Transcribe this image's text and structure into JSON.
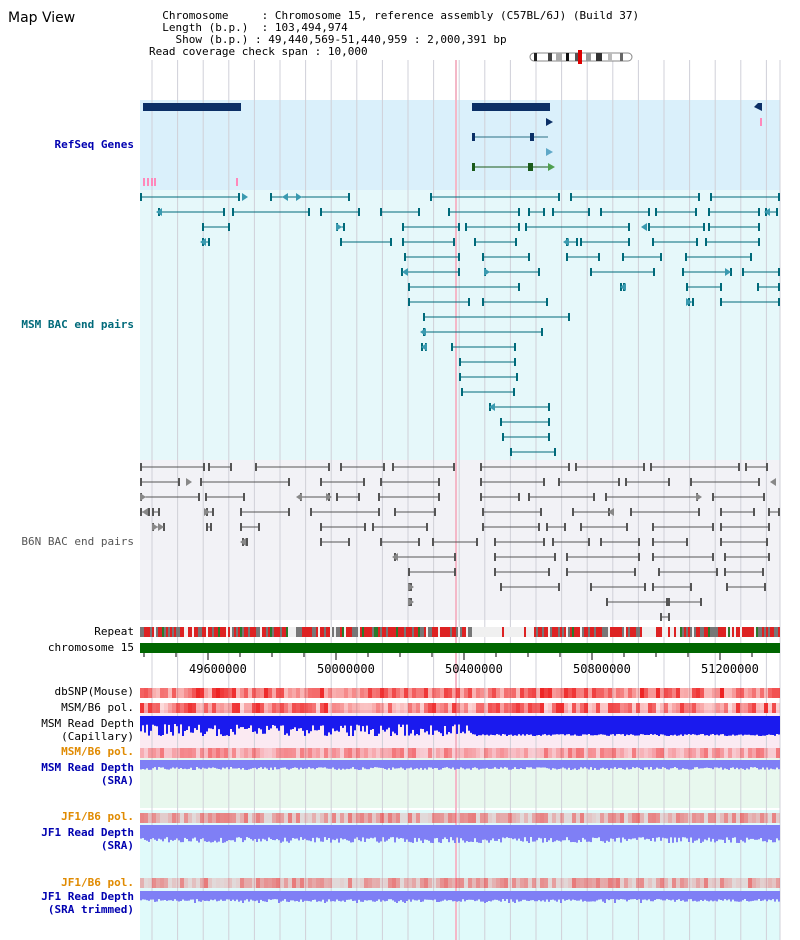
{
  "page_title": "Map View",
  "header": {
    "chromosome_key": "Chromosome",
    "chromosome_value": "Chromosome 15, reference assembly (C57BL/6J) (Build 37)",
    "length_key": "Length (b.p.)",
    "length_value": "103,494,974",
    "show_key": "Show (b.p.)",
    "show_value": "49,440,569-51,440,959 : 2,000,391 bp",
    "coverage_key": "Read coverage check span",
    "coverage_value": "10,000"
  },
  "tracks": {
    "refseq": "RefSeq Genes",
    "msm_bac": "MSM BAC end pairs",
    "b6n_bac": "B6N BAC end pairs",
    "repeat": "Repeat",
    "chromosome": "chromosome 15",
    "dbsnp": "dbSNP(Mouse)",
    "msm_b6_pol": "MSM/B6 pol.",
    "msm_read_depth_cap_1": "MSM Read Depth",
    "msm_read_depth_cap_2": "(Capillary)",
    "msm_b6_pol_2": "MSM/B6 pol.",
    "msm_read_depth_sra_1": "MSM Read Depth",
    "msm_read_depth_sra_2": "(SRA)",
    "jf1_b6_pol": "JF1/B6 pol.",
    "jf1_read_depth_1": "JF1 Read Depth",
    "jf1_read_depth_2": "(SRA)",
    "jf1_b6_pol_2": "JF1/B6 pol.",
    "jf1_trim_1": "JF1 Read Depth",
    "jf1_trim_2": "(SRA trimmed)"
  },
  "axis_ticks": [
    "49600000",
    "50000000",
    "50400000",
    "50800000",
    "51200000"
  ],
  "colors": {
    "refseq_bg": "#daf0fb",
    "msm_bg": "#e6f8fa",
    "b6n_bg": "#f2f2f6",
    "gene_blue": "#0b2f66",
    "msm_line": "#006a7a",
    "b6n_line": "#555555",
    "chromosome_bar": "#006600",
    "depth_blue": "#1a1aee",
    "depth_light": "#7f7ff5",
    "pol_red": "#ee2222"
  }
}
